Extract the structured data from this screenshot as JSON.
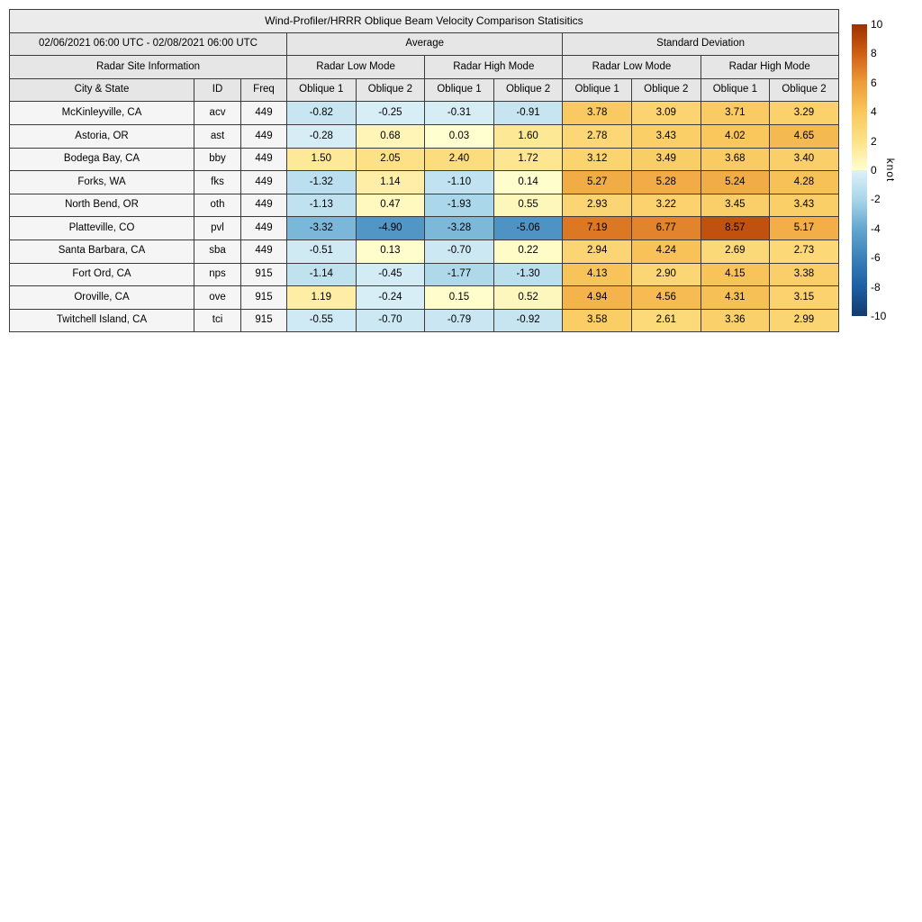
{
  "chart_data": {
    "type": "heatmap",
    "title": "Wind-Profiler/HRRR Oblique Beam Velocity Comparison Statisitics",
    "date_range": "02/06/2021 06:00 UTC - 02/08/2021 06:00 UTC",
    "sections": {
      "average": "Average",
      "std": "Standard Deviation"
    },
    "radar_site_info": "Radar Site Information",
    "modes": {
      "low": "Radar Low Mode",
      "high": "Radar High Mode"
    },
    "columns": {
      "city": "City & State",
      "id": "ID",
      "freq": "Freq",
      "oblique1": "Oblique 1",
      "oblique2": "Oblique 2"
    },
    "rows": [
      {
        "city": "McKinleyville, CA",
        "id": "acv",
        "freq": "449",
        "avg": [
          -0.82,
          -0.25,
          -0.31,
          -0.91
        ],
        "std": [
          3.78,
          3.09,
          3.71,
          3.29
        ]
      },
      {
        "city": "Astoria, OR",
        "id": "ast",
        "freq": "449",
        "avg": [
          -0.28,
          0.68,
          0.03,
          1.6
        ],
        "std": [
          2.78,
          3.43,
          4.02,
          4.65
        ]
      },
      {
        "city": "Bodega Bay, CA",
        "id": "bby",
        "freq": "449",
        "avg": [
          1.5,
          2.05,
          2.4,
          1.72
        ],
        "std": [
          3.12,
          3.49,
          3.68,
          3.4
        ]
      },
      {
        "city": "Forks, WA",
        "id": "fks",
        "freq": "449",
        "avg": [
          -1.32,
          1.14,
          -1.1,
          0.14
        ],
        "std": [
          5.27,
          5.28,
          5.24,
          4.28
        ]
      },
      {
        "city": "North Bend, OR",
        "id": "oth",
        "freq": "449",
        "avg": [
          -1.13,
          0.47,
          -1.93,
          0.55
        ],
        "std": [
          2.93,
          3.22,
          3.45,
          3.43
        ]
      },
      {
        "city": "Platteville, CO",
        "id": "pvl",
        "freq": "449",
        "avg": [
          -3.32,
          -4.9,
          -3.28,
          -5.06
        ],
        "std": [
          7.19,
          6.77,
          8.57,
          5.17
        ]
      },
      {
        "city": "Santa Barbara, CA",
        "id": "sba",
        "freq": "449",
        "avg": [
          -0.51,
          0.13,
          -0.7,
          0.22
        ],
        "std": [
          2.94,
          4.24,
          2.69,
          2.73
        ]
      },
      {
        "city": "Fort Ord, CA",
        "id": "nps",
        "freq": "915",
        "avg": [
          -1.14,
          -0.45,
          -1.77,
          -1.3
        ],
        "std": [
          4.13,
          2.9,
          4.15,
          3.38
        ]
      },
      {
        "city": "Oroville, CA",
        "id": "ove",
        "freq": "915",
        "avg": [
          1.19,
          -0.24,
          0.15,
          0.52
        ],
        "std": [
          4.94,
          4.56,
          4.31,
          3.15
        ]
      },
      {
        "city": "Twitchell Island, CA",
        "id": "tci",
        "freq": "915",
        "avg": [
          -0.55,
          -0.7,
          -0.79,
          -0.92
        ],
        "std": [
          3.58,
          2.61,
          3.36,
          2.99
        ]
      }
    ],
    "colorbar": {
      "label": "knot",
      "min": -10,
      "max": 10,
      "ticks": [
        10,
        8,
        6,
        4,
        2,
        0,
        -2,
        -4,
        -6,
        -8,
        -10
      ]
    },
    "colormap_stops": [
      [
        -10,
        "#133a6e"
      ],
      [
        -8,
        "#1d5fa4"
      ],
      [
        -6,
        "#3a81b9"
      ],
      [
        -4,
        "#64a7cf"
      ],
      [
        -2,
        "#a9d6e9"
      ],
      [
        -0.0001,
        "#def1f8"
      ],
      [
        0,
        "#ffffd0"
      ],
      [
        2,
        "#fde287"
      ],
      [
        4,
        "#f9c75c"
      ],
      [
        6,
        "#ee9c3a"
      ],
      [
        8,
        "#d05e14"
      ],
      [
        10,
        "#9c3103"
      ]
    ],
    "colors": {
      "header_bg": "#e6e6e6",
      "title_bg": "#ebebeb",
      "label_bg": "#f5f5f5",
      "border": "#3b3b3b",
      "background": "#ffffff"
    }
  }
}
